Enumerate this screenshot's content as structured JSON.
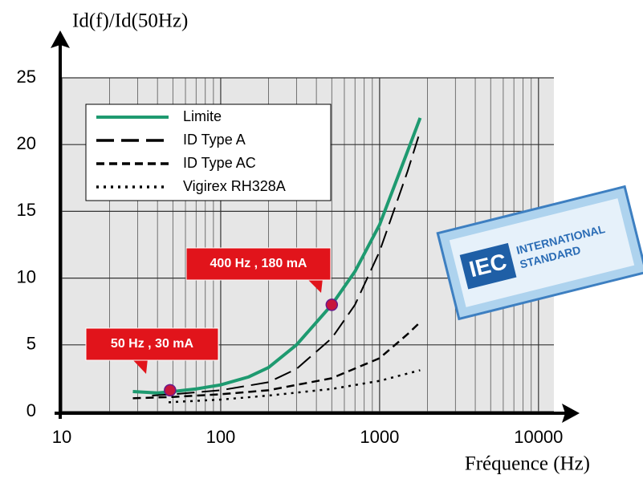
{
  "chart_data": {
    "type": "line",
    "x_label": "Fréquence (Hz)",
    "y_label": "Id(f)/Id(50Hz)",
    "xscale": "log",
    "xlim": [
      10,
      12500
    ],
    "ylim": [
      0,
      25
    ],
    "xticks": [
      10,
      100,
      1000,
      10000
    ],
    "xminor": [
      20,
      30,
      40,
      50,
      60,
      70,
      80,
      90,
      200,
      300,
      400,
      500,
      600,
      700,
      800,
      900,
      2000,
      3000,
      4000,
      5000,
      6000,
      7000,
      8000,
      9000
    ],
    "yticks": [
      0,
      5,
      10,
      15,
      20,
      25
    ],
    "grid": true,
    "legend": "upper-left",
    "series": [
      {
        "name": "Limite",
        "color": "#1e9a70",
        "style": "solid",
        "x": [
          28,
          40,
          50,
          70,
          100,
          150,
          200,
          300,
          500,
          700,
          1000,
          1500,
          1800
        ],
        "values": [
          1.5,
          1.4,
          1.5,
          1.7,
          2.0,
          2.6,
          3.3,
          5,
          8,
          10.5,
          14,
          19.5,
          22
        ]
      },
      {
        "name": "ID Type A",
        "color": "#000000",
        "style": "long-dash",
        "x": [
          37,
          50,
          100,
          200,
          300,
          500,
          700,
          1000,
          1500,
          1800
        ],
        "values": [
          1.2,
          1.3,
          1.6,
          2.2,
          3.2,
          5.5,
          8,
          12,
          18,
          21
        ]
      },
      {
        "name": "ID Type AC",
        "color": "#000000",
        "style": "dash",
        "x": [
          28,
          50,
          100,
          200,
          500,
          1000,
          1500,
          1800
        ],
        "values": [
          1,
          1.1,
          1.3,
          1.6,
          2.5,
          4,
          5.8,
          6.7
        ]
      },
      {
        "name": "Vigirex RH328A",
        "color": "#000000",
        "style": "dot",
        "x": [
          47,
          100,
          200,
          500,
          1000,
          1800
        ],
        "values": [
          0.7,
          0.9,
          1.2,
          1.7,
          2.3,
          3.1
        ]
      }
    ],
    "annotations": [
      {
        "text": "400 Hz , 180 mA",
        "x": 500,
        "y": 8
      },
      {
        "text": "50 Hz , 30 mA",
        "x": 48,
        "y": 1.6
      }
    ]
  },
  "stamp": {
    "logo": "IEC",
    "lines": [
      "INTERNATIONAL",
      "STANDARD"
    ]
  }
}
